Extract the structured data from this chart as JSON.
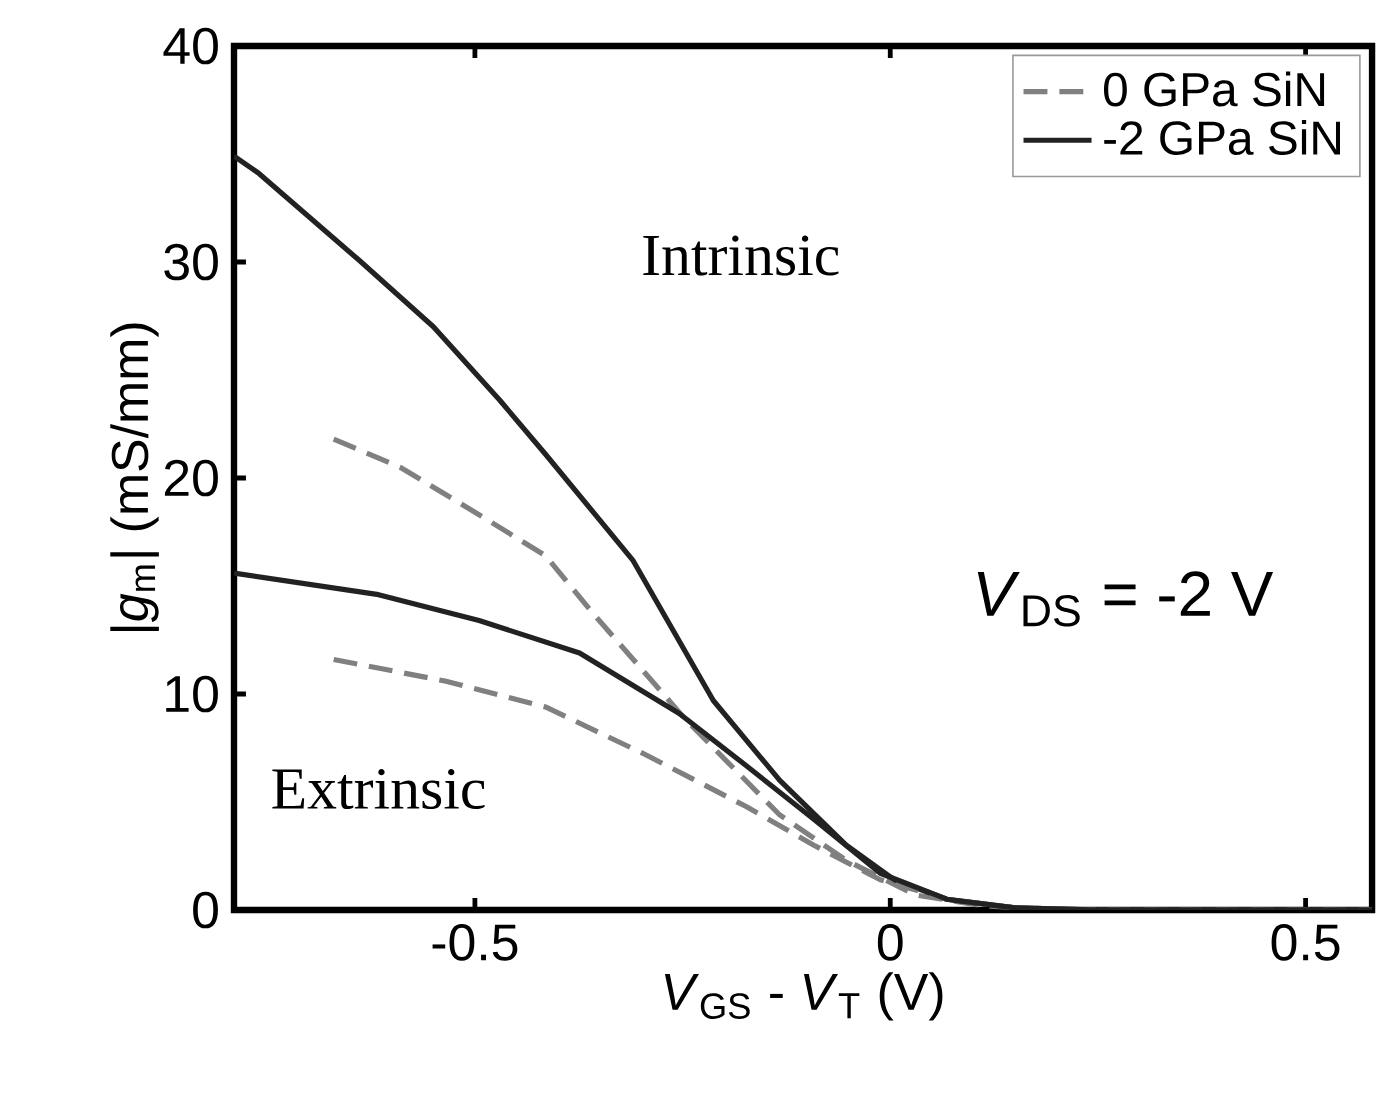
{
  "chart_data": {
    "type": "line",
    "xlabel": "*V*$_{GS}$ - *V*$_{T}$ (V)",
    "ylabel": "|*g*$_{m}$| (mS/mm)",
    "xlim": [
      -0.79,
      0.58
    ],
    "ylim": [
      0,
      40
    ],
    "xticks": [
      -0.5,
      0,
      0.5
    ],
    "yticks": [
      0,
      10,
      20,
      30,
      40
    ],
    "grid": false,
    "legend": "top right",
    "marker": "none",
    "annotations": [
      "Intrinsic",
      "Extrinsic",
      "*V*$_{DS}$ = -2 V"
    ],
    "series": [
      {
        "name": "0 GPa SiN",
        "color": "#808080",
        "line_style": "dashed",
        "x": [
          -0.67,
          -0.59,
          -0.495,
          -0.415,
          -0.357,
          -0.246,
          -0.133,
          -0.053,
          0.03,
          0.11,
          0.2,
          0.58
        ],
        "values": [
          21.8,
          20.5,
          18.3,
          16.4,
          13.7,
          8.8,
          4.4,
          2.3,
          0.7,
          0.2,
          0,
          0
        ]
      },
      {
        "name": "-2 GPa SiN",
        "color": "#222222",
        "line_style": "solid",
        "x": [
          -0.79,
          -0.76,
          -0.64,
          -0.55,
          -0.47,
          -0.415,
          -0.31,
          -0.213,
          -0.133,
          -0.053,
          0.005,
          0.068,
          0.15,
          0.25,
          0.58
        ],
        "values": [
          34.9,
          34.1,
          30.1,
          27.0,
          23.6,
          21.1,
          16.2,
          9.7,
          6.0,
          3.0,
          1.4,
          0.5,
          0.1,
          0,
          0
        ]
      },
      {
        "color": "#808080",
        "line_style": "dashed",
        "x": [
          -0.67,
          -0.536,
          -0.415,
          -0.295,
          -0.174,
          -0.092,
          -0.012,
          0.068,
          0.15,
          0.25,
          0.58
        ],
        "values": [
          11.6,
          10.6,
          9.4,
          7.2,
          4.8,
          3.0,
          1.4,
          0.5,
          0.1,
          0,
          0
        ]
      },
      {
        "color": "#222222",
        "line_style": "solid",
        "x": [
          -0.79,
          -0.616,
          -0.495,
          -0.374,
          -0.254,
          -0.174,
          -0.092,
          -0.012,
          0.068,
          0.15,
          0.25,
          0.58
        ],
        "values": [
          15.6,
          14.6,
          13.4,
          11.9,
          9.1,
          6.7,
          4.2,
          1.7,
          0.5,
          0.1,
          0,
          0
        ]
      }
    ]
  }
}
